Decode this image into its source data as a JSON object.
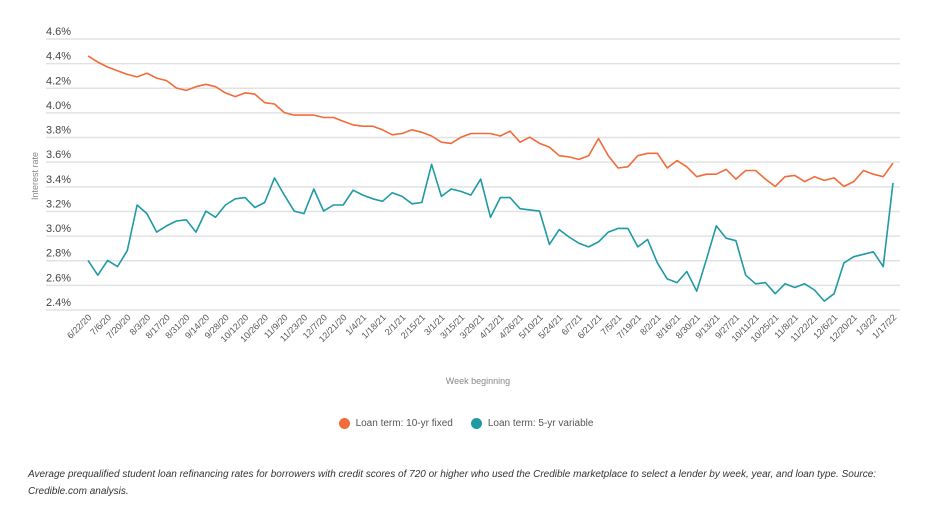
{
  "chart_data": {
    "type": "line",
    "xlabel": "Week beginning",
    "ylabel": "Interest rate",
    "ylim": [
      2.4,
      4.6
    ],
    "yticks": [
      "2.4%",
      "2.6%",
      "2.8%",
      "3.0%",
      "3.2%",
      "3.4%",
      "3.6%",
      "3.8%",
      "4.0%",
      "4.2%",
      "4.4%",
      "4.6%"
    ],
    "grid": true,
    "legend_position": "bottom",
    "x_tick_labels": [
      "6/22/20",
      "7/6/20",
      "7/20/20",
      "8/3/20",
      "8/17/20",
      "8/31/20",
      "9/14/20",
      "9/28/20",
      "10/12/20",
      "10/26/20",
      "11/9/20",
      "11/23/20",
      "12/7/20",
      "12/21/20",
      "1/4/21",
      "1/18/21",
      "2/1/21",
      "2/15/21",
      "3/1/21",
      "3/15/21",
      "3/29/21",
      "4/12/21",
      "4/26/21",
      "5/10/21",
      "5/24/21",
      "6/7/21",
      "6/21/21",
      "7/5/21",
      "7/19/21",
      "8/2/21",
      "8/16/21",
      "8/30/21",
      "9/13/21",
      "9/27/21",
      "10/11/21",
      "10/25/21",
      "11/8/21",
      "11/22/21",
      "12/6/21",
      "12/20/21",
      "1/3/22",
      "1/17/22"
    ],
    "series": [
      {
        "name": "Loan term: 10-yr fixed",
        "color": "#f26b3a",
        "values": [
          4.43,
          4.38,
          4.34,
          4.31,
          4.28,
          4.26,
          4.29,
          4.25,
          4.23,
          4.17,
          4.15,
          4.18,
          4.2,
          4.18,
          4.13,
          4.1,
          4.13,
          4.12,
          4.05,
          4.04,
          3.97,
          3.95,
          3.95,
          3.95,
          3.93,
          3.93,
          3.9,
          3.87,
          3.86,
          3.86,
          3.83,
          3.79,
          3.8,
          3.83,
          3.81,
          3.78,
          3.73,
          3.72,
          3.77,
          3.8,
          3.8,
          3.8,
          3.78,
          3.82,
          3.73,
          3.77,
          3.72,
          3.69,
          3.62,
          3.61,
          3.59,
          3.62,
          3.76,
          3.62,
          3.52,
          3.53,
          3.62,
          3.64,
          3.64,
          3.52,
          3.58,
          3.53,
          3.45,
          3.47,
          3.47,
          3.51,
          3.43,
          3.5,
          3.5,
          3.43,
          3.37,
          3.45,
          3.46,
          3.41,
          3.45,
          3.42,
          3.44,
          3.37,
          3.41,
          3.5,
          3.47,
          3.45,
          3.56
        ]
      },
      {
        "name": "Loan term: 5-yr variable",
        "color": "#1f9aa5",
        "values": [
          2.77,
          2.65,
          2.77,
          2.72,
          2.85,
          3.22,
          3.15,
          3.0,
          3.05,
          3.09,
          3.1,
          3.0,
          3.17,
          3.12,
          3.22,
          3.27,
          3.28,
          3.2,
          3.24,
          3.44,
          3.3,
          3.17,
          3.15,
          3.35,
          3.17,
          3.22,
          3.22,
          3.34,
          3.3,
          3.27,
          3.25,
          3.32,
          3.29,
          3.23,
          3.24,
          3.55,
          3.29,
          3.35,
          3.33,
          3.3,
          3.43,
          3.12,
          3.28,
          3.28,
          3.19,
          3.18,
          3.17,
          2.9,
          3.02,
          2.96,
          2.91,
          2.88,
          2.92,
          3.0,
          3.03,
          3.03,
          2.88,
          2.94,
          2.75,
          2.62,
          2.59,
          2.68,
          2.52,
          2.78,
          3.05,
          2.95,
          2.93,
          2.65,
          2.58,
          2.59,
          2.5,
          2.58,
          2.55,
          2.58,
          2.53,
          2.44,
          2.5,
          2.75,
          2.8,
          2.82,
          2.84,
          2.72,
          3.4
        ]
      }
    ]
  },
  "caption": "Average prequalified student loan refinancing rates for borrowers with credit scores of 720 or higher who used the Credible marketplace to select a lender by week, year, and loan type. Source: Credible.com analysis."
}
